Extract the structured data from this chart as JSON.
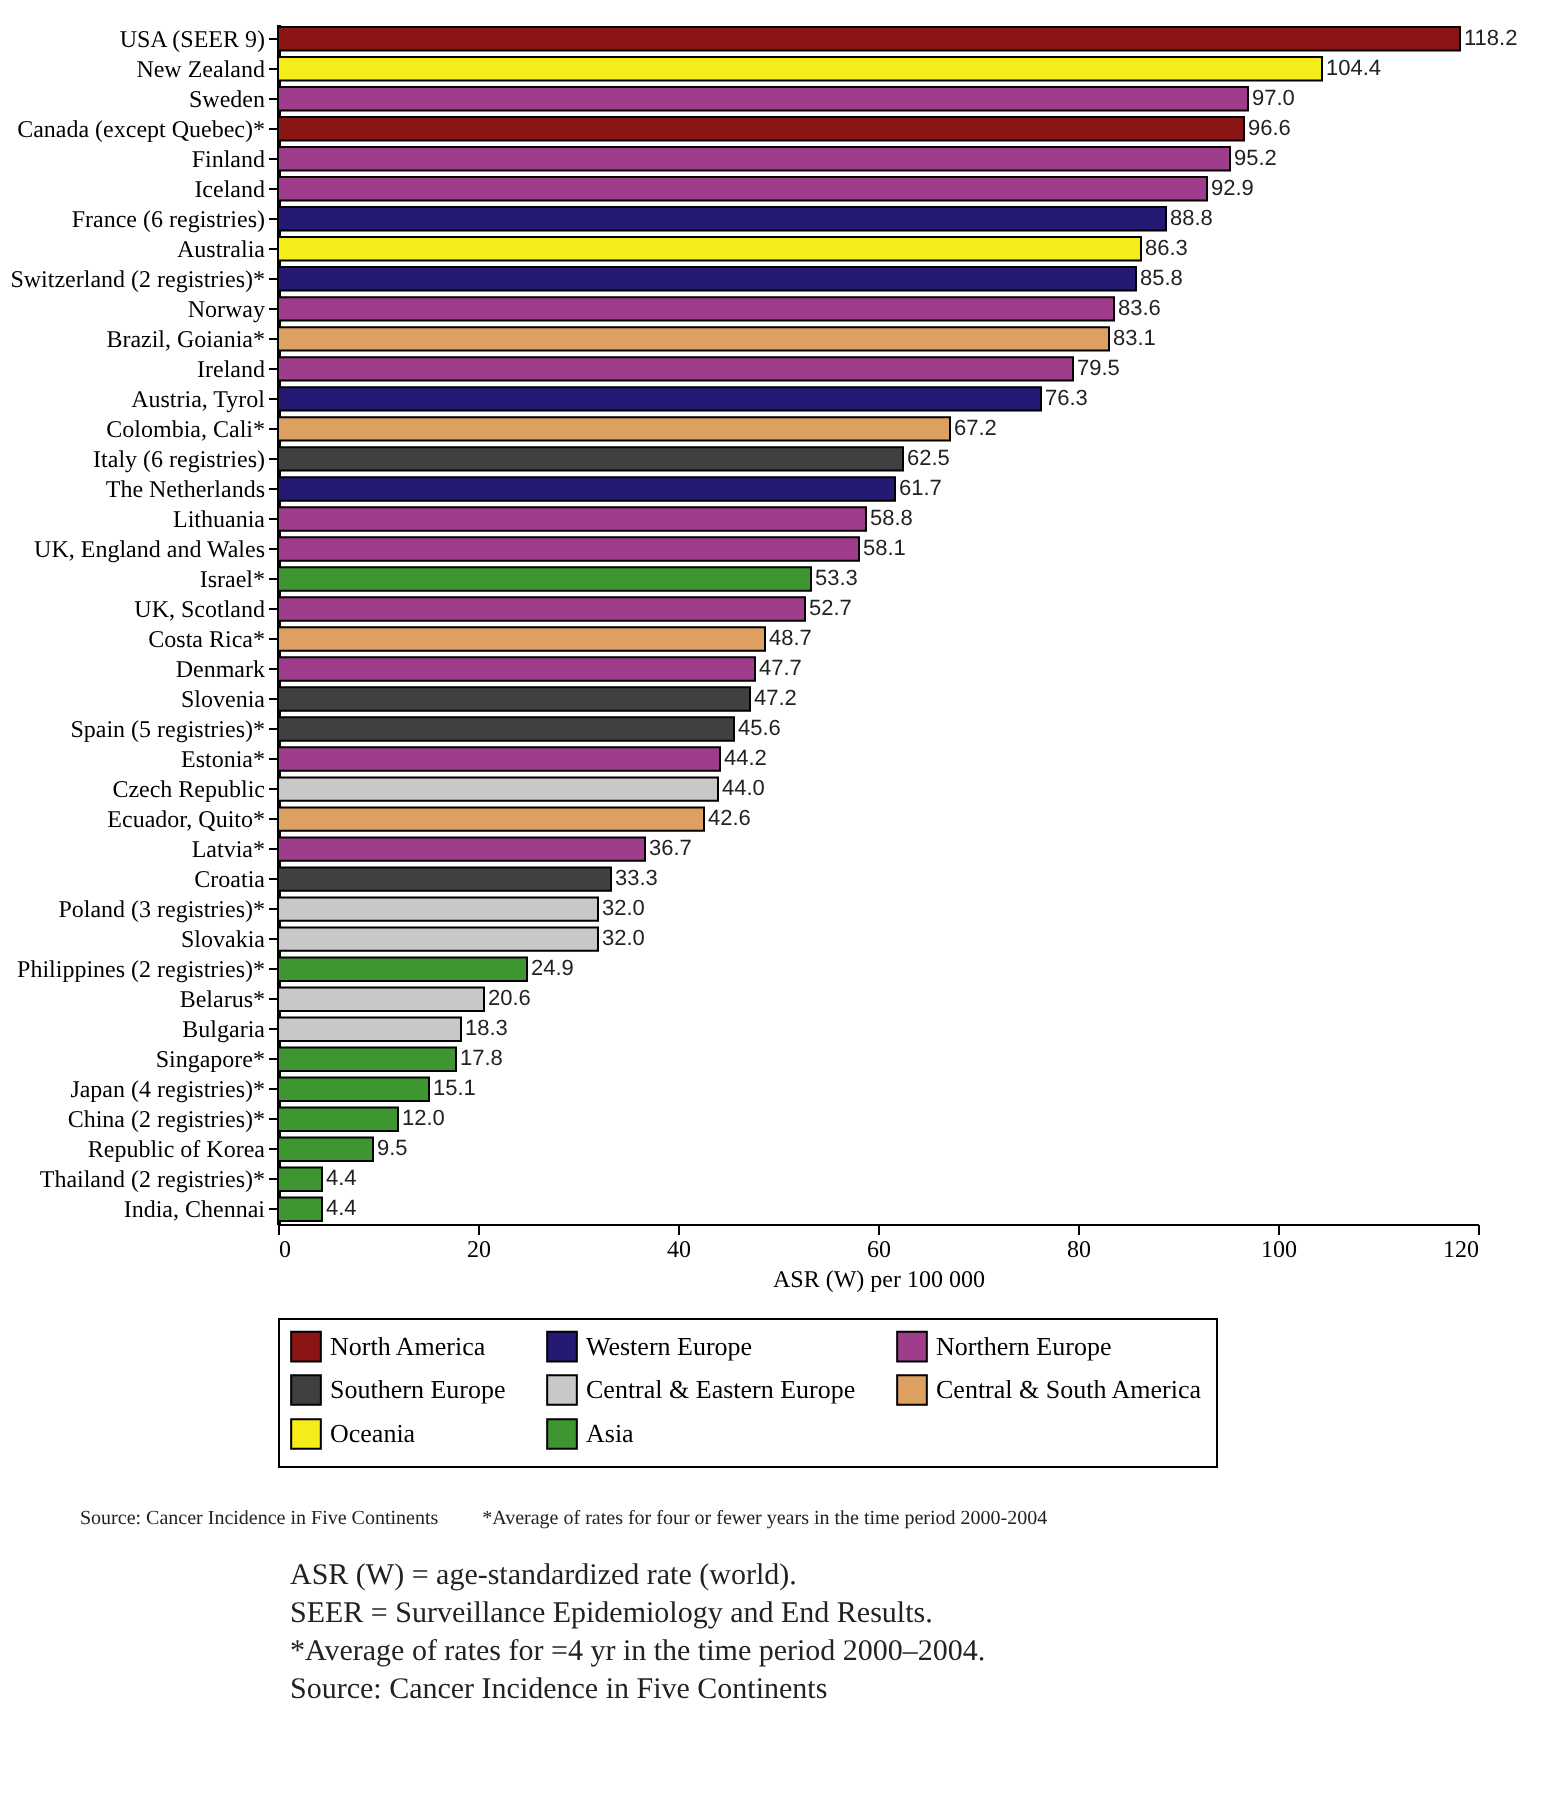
{
  "chart_data": {
    "type": "bar",
    "orientation": "horizontal",
    "xlabel": "ASR (W) per 100 000",
    "categories": [
      "USA (SEER 9)",
      "New Zealand",
      "Sweden",
      "Canada (except Quebec)*",
      "Finland",
      "Iceland",
      "France (6 registries)",
      "Australia",
      "Switzerland (2 registries)*",
      "Norway",
      "Brazil, Goiania*",
      "Ireland",
      "Austria, Tyrol",
      "Colombia, Cali*",
      "Italy (6 registries)",
      "The Netherlands",
      "Lithuania",
      "UK, England and Wales",
      "Israel*",
      "UK, Scotland",
      "Costa Rica*",
      "Denmark",
      "Slovenia",
      "Spain (5 registries)*",
      "Estonia*",
      "Czech Republic",
      "Ecuador, Quito*",
      "Latvia*",
      "Croatia",
      "Poland (3 registries)*",
      "Slovakia",
      "Philippines (2 registries)*",
      "Belarus*",
      "Bulgaria",
      "Singapore*",
      "Japan (4 registries)*",
      "China (2 registries)*",
      "Republic of Korea",
      "Thailand (2 registries)*",
      "India, Chennai"
    ],
    "series": [
      {
        "name": "North America",
        "color": "#8b1414",
        "values": [
          118.2,
          null,
          null,
          96.6,
          null,
          null,
          null,
          null,
          null,
          null,
          null,
          null,
          null,
          null,
          null,
          null,
          null,
          null,
          null,
          null,
          null,
          null,
          null,
          null,
          null,
          null,
          null,
          null,
          null,
          null,
          null,
          null,
          null,
          null,
          null,
          null,
          null,
          null,
          null,
          null
        ],
        "value_labels": [
          "118.2",
          null,
          null,
          "96.6",
          null,
          null,
          null,
          null,
          null,
          null,
          null,
          null,
          null,
          null,
          null,
          null,
          null,
          null,
          null,
          null,
          null,
          null,
          null,
          null,
          null,
          null,
          null,
          null,
          null,
          null,
          null,
          null,
          null,
          null,
          null,
          null,
          null,
          null,
          null,
          null
        ]
      },
      {
        "name": "Western Europe",
        "color": "#241a74",
        "values": [
          null,
          null,
          null,
          null,
          null,
          null,
          88.8,
          null,
          85.8,
          null,
          null,
          null,
          76.3,
          null,
          null,
          61.7,
          null,
          null,
          null,
          null,
          null,
          null,
          null,
          null,
          null,
          null,
          null,
          null,
          null,
          null,
          null,
          null,
          null,
          null,
          null,
          null,
          null,
          null,
          null,
          null
        ],
        "value_labels": [
          null,
          null,
          null,
          null,
          null,
          null,
          "88.8",
          null,
          "85.8",
          null,
          null,
          null,
          "76.3",
          null,
          null,
          "61.7",
          null,
          null,
          null,
          null,
          null,
          null,
          null,
          null,
          null,
          null,
          null,
          null,
          null,
          null,
          null,
          null,
          null,
          null,
          null,
          null,
          null,
          null,
          null,
          null
        ]
      },
      {
        "name": "Northern Europe",
        "color": "#a03c8c",
        "values": [
          null,
          null,
          97.0,
          null,
          95.2,
          92.9,
          null,
          null,
          null,
          83.6,
          null,
          79.5,
          null,
          null,
          null,
          null,
          58.8,
          58.1,
          null,
          52.7,
          null,
          47.7,
          null,
          null,
          44.2,
          null,
          null,
          36.7,
          null,
          null,
          null,
          null,
          null,
          null,
          null,
          null,
          null,
          null,
          null,
          null
        ],
        "value_labels": [
          null,
          null,
          "97.0",
          null,
          "95.2",
          "92.9",
          null,
          null,
          null,
          "83.6",
          null,
          "79.5",
          null,
          null,
          null,
          null,
          "58.8",
          "58.1",
          null,
          "52.7",
          null,
          "47.7",
          null,
          null,
          "44.2",
          null,
          null,
          "36.7",
          null,
          null,
          null,
          null,
          null,
          null,
          null,
          null,
          null,
          null,
          null,
          null
        ]
      },
      {
        "name": "Southern Europe",
        "color": "#404040",
        "values": [
          null,
          null,
          null,
          null,
          null,
          null,
          null,
          null,
          null,
          null,
          null,
          null,
          null,
          null,
          62.5,
          null,
          null,
          null,
          null,
          null,
          null,
          null,
          47.2,
          45.6,
          null,
          null,
          null,
          null,
          33.3,
          null,
          null,
          null,
          null,
          null,
          null,
          null,
          null,
          null,
          null,
          null
        ],
        "value_labels": [
          null,
          null,
          null,
          null,
          null,
          null,
          null,
          null,
          null,
          null,
          null,
          null,
          null,
          null,
          "62.5",
          null,
          null,
          null,
          null,
          null,
          null,
          null,
          "47.2",
          "45.6",
          null,
          null,
          null,
          null,
          "33.3",
          null,
          null,
          null,
          null,
          null,
          null,
          null,
          null,
          null,
          null,
          null
        ]
      },
      {
        "name": "Central & Eastern Europe",
        "color": "#c8c8c8",
        "values": [
          null,
          null,
          null,
          null,
          null,
          null,
          null,
          null,
          null,
          null,
          null,
          null,
          null,
          null,
          null,
          null,
          null,
          null,
          null,
          null,
          null,
          null,
          null,
          null,
          null,
          44.0,
          null,
          null,
          null,
          32.0,
          32.0,
          null,
          20.6,
          18.3,
          null,
          null,
          null,
          null,
          null,
          null
        ],
        "value_labels": [
          null,
          null,
          null,
          null,
          null,
          null,
          null,
          null,
          null,
          null,
          null,
          null,
          null,
          null,
          null,
          null,
          null,
          null,
          null,
          null,
          null,
          null,
          null,
          null,
          null,
          "44.0",
          null,
          null,
          null,
          "32.0",
          "32.0",
          null,
          "20.6",
          "18.3",
          null,
          null,
          null,
          null,
          null,
          null
        ]
      },
      {
        "name": "Central & South America",
        "color": "#dea060",
        "values": [
          null,
          null,
          null,
          null,
          null,
          null,
          null,
          null,
          null,
          null,
          83.1,
          null,
          null,
          67.2,
          null,
          null,
          null,
          null,
          null,
          null,
          48.7,
          null,
          null,
          null,
          null,
          null,
          42.6,
          null,
          null,
          null,
          null,
          null,
          null,
          null,
          null,
          null,
          null,
          null,
          null,
          null
        ],
        "value_labels": [
          null,
          null,
          null,
          null,
          null,
          null,
          null,
          null,
          null,
          null,
          "83.1",
          null,
          null,
          "67.2",
          null,
          null,
          null,
          null,
          null,
          null,
          "48.7",
          null,
          null,
          null,
          null,
          null,
          "42.6",
          null,
          null,
          null,
          null,
          null,
          null,
          null,
          null,
          null,
          null,
          null,
          null,
          null
        ]
      },
      {
        "name": "Oceania",
        "color": "#f5ec1a",
        "values": [
          null,
          104.4,
          null,
          null,
          null,
          null,
          null,
          86.3,
          null,
          null,
          null,
          null,
          null,
          null,
          null,
          null,
          null,
          null,
          null,
          null,
          null,
          null,
          null,
          null,
          null,
          null,
          null,
          null,
          null,
          null,
          null,
          null,
          null,
          null,
          null,
          null,
          null,
          null,
          null,
          null
        ],
        "value_labels": [
          null,
          "104.4",
          null,
          null,
          null,
          null,
          null,
          "86.3",
          null,
          null,
          null,
          null,
          null,
          null,
          null,
          null,
          null,
          null,
          null,
          null,
          null,
          null,
          null,
          null,
          null,
          null,
          null,
          null,
          null,
          null,
          null,
          null,
          null,
          null,
          null,
          null,
          null,
          null,
          null,
          null
        ]
      },
      {
        "name": "Asia",
        "color": "#3e9630",
        "values": [
          null,
          null,
          null,
          null,
          null,
          null,
          null,
          null,
          null,
          null,
          null,
          null,
          null,
          null,
          null,
          null,
          null,
          null,
          53.3,
          null,
          null,
          null,
          null,
          null,
          null,
          null,
          null,
          null,
          null,
          null,
          null,
          24.9,
          null,
          null,
          17.8,
          15.1,
          12.0,
          9.5,
          4.4,
          4.4
        ],
        "value_labels": [
          null,
          null,
          null,
          null,
          null,
          null,
          null,
          null,
          null,
          null,
          null,
          null,
          null,
          null,
          null,
          null,
          null,
          null,
          "53.3",
          null,
          null,
          null,
          null,
          null,
          null,
          null,
          null,
          null,
          null,
          null,
          null,
          "24.9",
          null,
          null,
          "17.8",
          "15.1",
          "12.0",
          "9.5",
          "4.4",
          "4.4"
        ]
      }
    ],
    "xlim": [
      0,
      120
    ],
    "xticks": [
      0,
      20,
      40,
      60,
      80,
      100,
      120
    ],
    "legend": "bottom",
    "annotations": [
      "Source: Cancer Incidence in Five Continents",
      "*Average of rates for four or fewer years in the time period 2000-2004",
      "ASR (W) = age-standardized rate (world).",
      "SEER = Surveillance Epidemiology and End Results.",
      "*Average of rates for =4 yr in the time period 2000–2004.",
      "Source: Cancer Incidence in Five Continents"
    ]
  }
}
